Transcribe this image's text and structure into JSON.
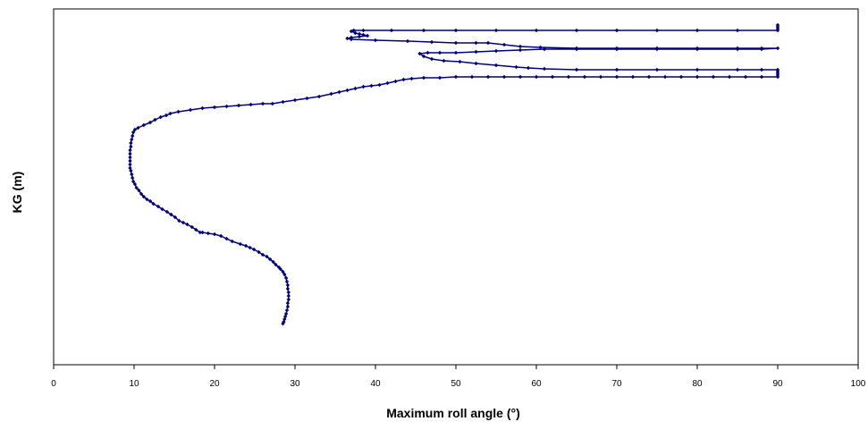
{
  "chart_data": {
    "type": "line",
    "title": "",
    "xlabel": "Maximum roll angle (°)",
    "ylabel": "KG (m)",
    "xlim": [
      0,
      100
    ],
    "x_ticks": [
      0,
      10,
      20,
      30,
      40,
      50,
      60,
      70,
      80,
      90,
      100
    ],
    "y_ticks_labeled": false,
    "grid": false,
    "legend": "none",
    "colors": {
      "series": "#000080",
      "frame": "#000000"
    },
    "series": [
      {
        "marker": "diamond",
        "points": [
          [
            28.5,
            362
          ],
          [
            28.6,
            360
          ],
          [
            28.7,
            357
          ],
          [
            28.8,
            354
          ],
          [
            28.9,
            351
          ],
          [
            29.0,
            347
          ],
          [
            29.1,
            343
          ],
          [
            29.1,
            339
          ],
          [
            29.2,
            335
          ],
          [
            29.2,
            331
          ],
          [
            29.2,
            327
          ],
          [
            29.1,
            323
          ],
          [
            29.1,
            319
          ],
          [
            29.0,
            315
          ],
          [
            28.9,
            311
          ],
          [
            28.7,
            307
          ],
          [
            28.5,
            304
          ],
          [
            28.2,
            301
          ],
          [
            28.0,
            299
          ],
          [
            27.6,
            296
          ],
          [
            27.3,
            293
          ],
          [
            26.9,
            290
          ],
          [
            26.5,
            287
          ],
          [
            26.0,
            285
          ],
          [
            25.5,
            282
          ],
          [
            24.9,
            279
          ],
          [
            24.4,
            277
          ],
          [
            23.9,
            275
          ],
          [
            23.2,
            273
          ],
          [
            22.2,
            270
          ],
          [
            21.5,
            267
          ],
          [
            20.8,
            264
          ],
          [
            20.0,
            262
          ],
          [
            19.2,
            261
          ],
          [
            18.5,
            260
          ],
          [
            18.2,
            260
          ],
          [
            17.7,
            257
          ],
          [
            17.2,
            254
          ],
          [
            16.6,
            251
          ],
          [
            16.1,
            249
          ],
          [
            15.6,
            247
          ],
          [
            15.1,
            243
          ],
          [
            14.6,
            240
          ],
          [
            14.1,
            237
          ],
          [
            13.5,
            234
          ],
          [
            13.0,
            231
          ],
          [
            12.4,
            228
          ],
          [
            12.0,
            225
          ],
          [
            11.6,
            223
          ],
          [
            11.2,
            220
          ],
          [
            10.9,
            217
          ],
          [
            10.6,
            213
          ],
          [
            10.3,
            210
          ],
          [
            10.1,
            206
          ],
          [
            9.9,
            203
          ],
          [
            9.8,
            199
          ],
          [
            9.7,
            195
          ],
          [
            9.6,
            191
          ],
          [
            9.5,
            188
          ],
          [
            9.5,
            184
          ],
          [
            9.5,
            180
          ],
          [
            9.5,
            176
          ],
          [
            9.5,
            172
          ],
          [
            9.5,
            168
          ],
          [
            9.6,
            164
          ],
          [
            9.6,
            160
          ],
          [
            9.7,
            156
          ],
          [
            9.8,
            152
          ],
          [
            9.9,
            148
          ],
          [
            10.1,
            145
          ],
          [
            10.5,
            143
          ],
          [
            11.2,
            140
          ],
          [
            12.0,
            137
          ],
          [
            12.6,
            134
          ],
          [
            13.3,
            131
          ],
          [
            14.0,
            129
          ],
          [
            14.5,
            127
          ],
          [
            15.5,
            125
          ],
          [
            17.0,
            123
          ],
          [
            18.5,
            121
          ],
          [
            20.0,
            120
          ],
          [
            21.5,
            119
          ],
          [
            23.0,
            118
          ],
          [
            24.5,
            117
          ],
          [
            26.0,
            116
          ],
          [
            27.2,
            116
          ],
          [
            28.5,
            114
          ],
          [
            30.0,
            112
          ],
          [
            31.5,
            110
          ],
          [
            33.0,
            108
          ],
          [
            34.5,
            105
          ],
          [
            35.5,
            103
          ],
          [
            36.5,
            101
          ],
          [
            37.5,
            99
          ],
          [
            38.5,
            97
          ],
          [
            39.5,
            96
          ],
          [
            40.5,
            95
          ],
          [
            41.5,
            93
          ],
          [
            42.5,
            91
          ],
          [
            43.5,
            89
          ],
          [
            44.5,
            88
          ],
          [
            46.0,
            87
          ],
          [
            48.0,
            87
          ],
          [
            50.0,
            86
          ],
          [
            52.0,
            86
          ],
          [
            54.0,
            86
          ],
          [
            56.0,
            86
          ],
          [
            58.0,
            86
          ],
          [
            60.0,
            86
          ],
          [
            62.0,
            86
          ],
          [
            64.0,
            86
          ],
          [
            66.0,
            86
          ],
          [
            68.0,
            86
          ],
          [
            70.0,
            86
          ],
          [
            72.0,
            86
          ],
          [
            74.0,
            86
          ],
          [
            76.0,
            86
          ],
          [
            78.0,
            86
          ],
          [
            80.0,
            86
          ],
          [
            82.0,
            86
          ],
          [
            84.0,
            86
          ],
          [
            86.0,
            86
          ],
          [
            88.0,
            86
          ],
          [
            90.0,
            86
          ],
          [
            90.0,
            84
          ],
          [
            90.0,
            82
          ],
          [
            90.0,
            80
          ],
          [
            90.0,
            78
          ],
          [
            88.0,
            78
          ],
          [
            85.0,
            78
          ],
          [
            80.0,
            78
          ],
          [
            75.0,
            78
          ],
          [
            70.0,
            78
          ],
          [
            65.0,
            78
          ],
          [
            61.0,
            77
          ],
          [
            59.0,
            76
          ],
          [
            57.5,
            75
          ],
          [
            55.0,
            73
          ],
          [
            52.5,
            71
          ],
          [
            50.5,
            69
          ],
          [
            48.5,
            68
          ],
          [
            47.0,
            66
          ],
          [
            46.0,
            63
          ],
          [
            45.5,
            60
          ],
          [
            46.5,
            59
          ],
          [
            48.0,
            59
          ],
          [
            50.0,
            59
          ],
          [
            52.5,
            58
          ],
          [
            55.0,
            57
          ],
          [
            58.0,
            56
          ],
          [
            61.0,
            55
          ],
          [
            65.0,
            55
          ],
          [
            70.0,
            55
          ],
          [
            75.0,
            55
          ],
          [
            80.0,
            55
          ],
          [
            85.0,
            55
          ],
          [
            88.0,
            55
          ],
          [
            90.0,
            54
          ],
          [
            88.0,
            54
          ],
          [
            85.0,
            54
          ],
          [
            80.0,
            54
          ],
          [
            75.0,
            54
          ],
          [
            70.0,
            54
          ],
          [
            65.0,
            54
          ],
          [
            60.5,
            53
          ],
          [
            58.0,
            52
          ],
          [
            56.0,
            50
          ],
          [
            54.0,
            48
          ],
          [
            52.5,
            48
          ],
          [
            50.0,
            48
          ],
          [
            47.0,
            47
          ],
          [
            44.0,
            46
          ],
          [
            40.0,
            45
          ],
          [
            37.0,
            44
          ],
          [
            36.5,
            43
          ],
          [
            37.0,
            42
          ],
          [
            38.0,
            41
          ],
          [
            39.0,
            40
          ],
          [
            38.5,
            39
          ],
          [
            38.0,
            38
          ],
          [
            37.5,
            37
          ],
          [
            37.0,
            35
          ],
          [
            37.3,
            34
          ],
          [
            38.5,
            34
          ],
          [
            42.0,
            34
          ],
          [
            46.0,
            34
          ],
          [
            50.0,
            34
          ],
          [
            55.0,
            34
          ],
          [
            60.0,
            34
          ],
          [
            65.0,
            34
          ],
          [
            70.0,
            34
          ],
          [
            75.0,
            34
          ],
          [
            80.0,
            34
          ],
          [
            85.0,
            34
          ],
          [
            90.0,
            34
          ],
          [
            90.0,
            32
          ],
          [
            90.0,
            30
          ],
          [
            90.0,
            28
          ]
        ]
      }
    ]
  }
}
